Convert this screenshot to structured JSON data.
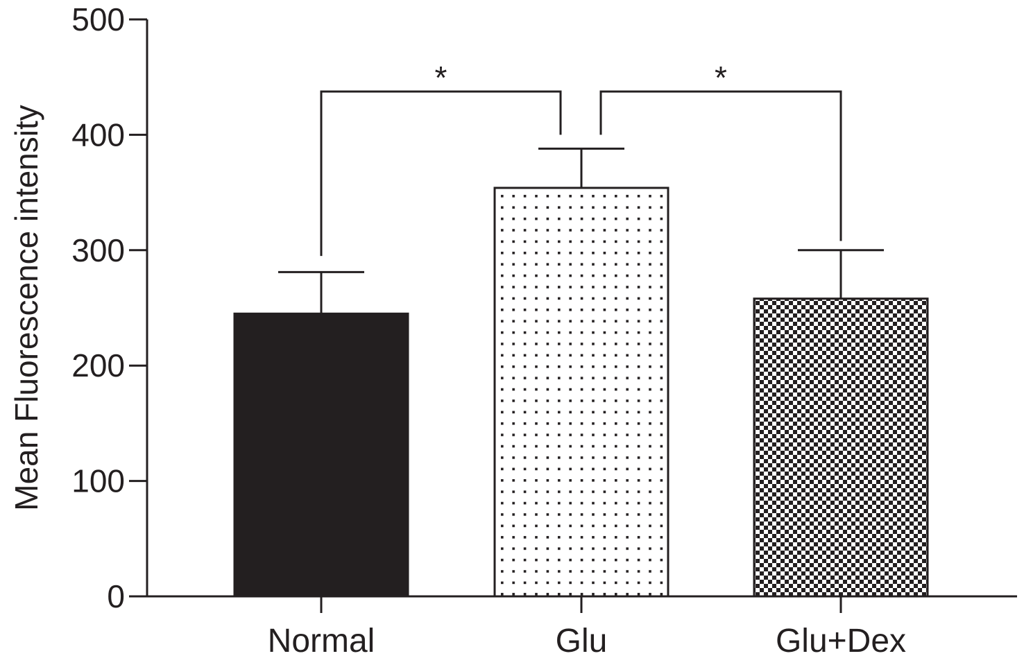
{
  "chart_data": {
    "type": "bar",
    "title": "",
    "xlabel": "",
    "ylabel": "Mean Fluorescence intensity",
    "ylim": [
      0,
      500
    ],
    "yticks": [
      0,
      100,
      200,
      300,
      400,
      500
    ],
    "categories": [
      "Normal",
      "Glu",
      "Glu+Dex"
    ],
    "values": [
      245,
      354,
      258
    ],
    "errors": [
      36,
      34,
      42
    ],
    "fills": [
      "solid",
      "dotted",
      "checkered"
    ],
    "colors": {
      "bar": "#231f20",
      "axis": "#231f20",
      "background": "#ffffff"
    },
    "grid": false,
    "legend": "none",
    "annotations": [
      {
        "from": "Normal",
        "to": "Glu",
        "label": "*"
      },
      {
        "from": "Glu",
        "to": "Glu+Dex",
        "label": "*"
      }
    ]
  }
}
